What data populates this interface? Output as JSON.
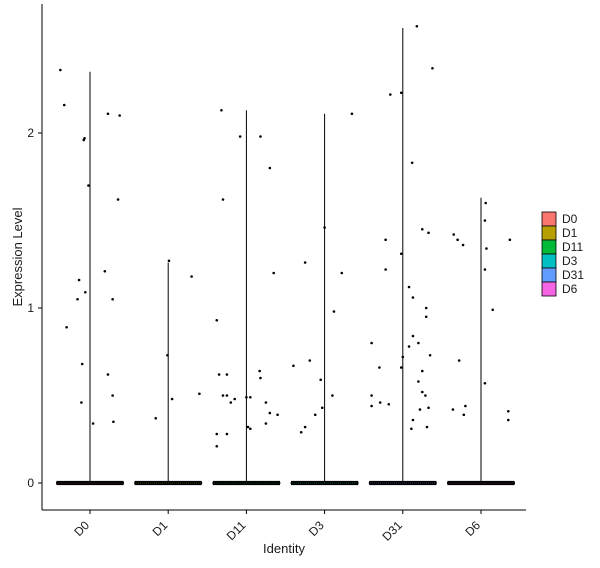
{
  "chart_data": {
    "type": "violin",
    "xlabel": "Identity",
    "ylabel": "Expression Level",
    "ylim": [
      -0.14,
      2.7
    ],
    "yticks": [
      0,
      1,
      2
    ],
    "grid": false,
    "legend_position": "right",
    "categories": [
      "D0",
      "D1",
      "D11",
      "D3",
      "D31",
      "D6"
    ],
    "colors": {
      "D0": "#F8766D",
      "D1": "#B79F00",
      "D11": "#00BA38",
      "D3": "#00BFC4",
      "D31": "#619CFF",
      "D6": "#F564E3"
    },
    "series": [
      {
        "name": "D0",
        "max": 2.35,
        "points": [
          [
            -0.38,
            2.36
          ],
          [
            -0.33,
            2.16
          ],
          [
            0.23,
            2.11
          ],
          [
            0.38,
            2.1
          ],
          [
            -0.07,
            1.97
          ],
          [
            -0.08,
            1.96
          ],
          [
            -0.02,
            1.7
          ],
          [
            0.36,
            1.62
          ],
          [
            -0.14,
            1.16
          ],
          [
            0.19,
            1.21
          ],
          [
            -0.06,
            1.09
          ],
          [
            -0.16,
            1.05
          ],
          [
            0.29,
            1.05
          ],
          [
            -0.3,
            0.89
          ],
          [
            -0.1,
            0.68
          ],
          [
            0.23,
            0.62
          ],
          [
            0.29,
            0.5
          ],
          [
            -0.11,
            0.46
          ],
          [
            0.3,
            0.35
          ],
          [
            0.04,
            0.34
          ]
        ]
      },
      {
        "name": "D1",
        "max": 1.26,
        "points": [
          [
            0.3,
            1.18
          ],
          [
            0.01,
            1.27
          ],
          [
            -0.01,
            0.73
          ],
          [
            0.05,
            0.48
          ],
          [
            0.4,
            0.51
          ],
          [
            -0.16,
            0.37
          ]
        ]
      },
      {
        "name": "D11",
        "max": 2.13,
        "points": [
          [
            -0.32,
            2.13
          ],
          [
            -0.08,
            1.98
          ],
          [
            0.18,
            1.98
          ],
          [
            -0.3,
            1.62
          ],
          [
            0.3,
            1.8
          ],
          [
            0.35,
            1.2
          ],
          [
            -0.38,
            0.93
          ],
          [
            -0.35,
            0.62
          ],
          [
            -0.25,
            0.62
          ],
          [
            0.17,
            0.64
          ],
          [
            0.18,
            0.6
          ],
          [
            -0.3,
            0.5
          ],
          [
            -0.25,
            0.5
          ],
          [
            -0.15,
            0.48
          ],
          [
            -0.2,
            0.46
          ],
          [
            0.25,
            0.46
          ],
          [
            0.3,
            0.4
          ],
          [
            0.4,
            0.39
          ],
          [
            0.05,
            0.31
          ],
          [
            0.02,
            0.32
          ],
          [
            0.25,
            0.34
          ],
          [
            -0.38,
            0.28
          ],
          [
            -0.25,
            0.28
          ],
          [
            -0.38,
            0.21
          ],
          [
            0.0,
            0.49
          ],
          [
            0.05,
            0.49
          ]
        ]
      },
      {
        "name": "D3",
        "max": 2.11,
        "points": [
          [
            0.35,
            2.11
          ],
          [
            0.0,
            1.46
          ],
          [
            -0.25,
            1.26
          ],
          [
            0.22,
            1.2
          ],
          [
            0.12,
            0.98
          ],
          [
            -0.19,
            0.7
          ],
          [
            -0.4,
            0.67
          ],
          [
            -0.05,
            0.59
          ],
          [
            0.1,
            0.5
          ],
          [
            -0.03,
            0.43
          ],
          [
            -0.12,
            0.39
          ],
          [
            -0.25,
            0.32
          ],
          [
            -0.3,
            0.29
          ]
        ]
      },
      {
        "name": "D31",
        "max": 2.6,
        "points": [
          [
            0.18,
            2.61
          ],
          [
            0.38,
            2.37
          ],
          [
            -0.16,
            2.22
          ],
          [
            -0.02,
            2.23
          ],
          [
            0.12,
            1.83
          ],
          [
            0.25,
            1.45
          ],
          [
            0.33,
            1.43
          ],
          [
            -0.22,
            1.39
          ],
          [
            -0.22,
            1.22
          ],
          [
            -0.02,
            1.31
          ],
          [
            0.08,
            1.12
          ],
          [
            0.13,
            1.06
          ],
          [
            0.3,
            1.0
          ],
          [
            0.3,
            0.95
          ],
          [
            0.13,
            0.84
          ],
          [
            0.2,
            0.8
          ],
          [
            -0.4,
            0.8
          ],
          [
            0.08,
            0.78
          ],
          [
            0.0,
            0.72
          ],
          [
            0.35,
            0.73
          ],
          [
            -0.3,
            0.66
          ],
          [
            -0.02,
            0.66
          ],
          [
            0.25,
            0.64
          ],
          [
            0.2,
            0.58
          ],
          [
            0.25,
            0.52
          ],
          [
            -0.4,
            0.5
          ],
          [
            0.29,
            0.5
          ],
          [
            -0.29,
            0.46
          ],
          [
            -0.18,
            0.45
          ],
          [
            -0.4,
            0.44
          ],
          [
            0.33,
            0.43
          ],
          [
            0.22,
            0.42
          ],
          [
            0.13,
            0.36
          ],
          [
            0.11,
            0.31
          ],
          [
            0.31,
            0.32
          ]
        ]
      },
      {
        "name": "D6",
        "max": 1.63,
        "points": [
          [
            0.06,
            1.6
          ],
          [
            0.05,
            1.5
          ],
          [
            -0.35,
            1.42
          ],
          [
            -0.3,
            1.39
          ],
          [
            -0.23,
            1.36
          ],
          [
            0.07,
            1.34
          ],
          [
            0.37,
            1.39
          ],
          [
            0.05,
            1.22
          ],
          [
            0.15,
            0.99
          ],
          [
            -0.28,
            0.7
          ],
          [
            0.05,
            0.57
          ],
          [
            -0.2,
            0.44
          ],
          [
            -0.36,
            0.42
          ],
          [
            -0.22,
            0.39
          ],
          [
            0.35,
            0.41
          ],
          [
            0.35,
            0.36
          ]
        ]
      }
    ]
  }
}
